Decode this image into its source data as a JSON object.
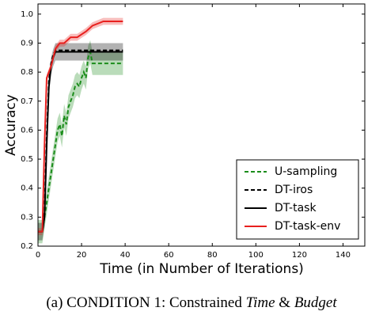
{
  "chart_data": {
    "type": "line",
    "xlabel": "Time (in Number of Iterations)",
    "ylabel": "Accuracy",
    "caption": [
      "(a) CONDITION 1: Constrained ",
      "Time",
      " & ",
      "Budget"
    ],
    "xlim": [
      0,
      150
    ],
    "xticks": [
      0,
      20,
      40,
      60,
      80,
      100,
      120,
      140
    ],
    "ylim": [
      0.2,
      1.035
    ],
    "yticks": [
      {
        "value": 0.2,
        "label": "0.2"
      },
      0.3,
      0.4,
      0.5,
      0.6,
      0.7,
      0.8,
      0.9,
      {
        "value": 1.0,
        "label": "1.0"
      }
    ],
    "legend": "lower right",
    "grid": false,
    "series": [
      {
        "name": "U-sampling",
        "color": "#1a8c1a",
        "dash": true,
        "spread": 0.04,
        "x": [
          0,
          2,
          3,
          4,
          5,
          6,
          7,
          8,
          9,
          10,
          11,
          12,
          13,
          14,
          15,
          16,
          17,
          18,
          19,
          20,
          21,
          22,
          23,
          24,
          25,
          30,
          39
        ],
        "values": [
          0.25,
          0.25,
          0.3,
          0.35,
          0.4,
          0.45,
          0.5,
          0.55,
          0.6,
          0.62,
          0.58,
          0.65,
          0.62,
          0.68,
          0.7,
          0.72,
          0.75,
          0.76,
          0.75,
          0.78,
          0.8,
          0.78,
          0.85,
          0.87,
          0.83,
          0.83,
          0.83
        ]
      },
      {
        "name": "DT-iros",
        "color": "#000000",
        "dash": true,
        "spread": 0.0,
        "x": [
          0,
          2,
          3,
          4,
          5,
          6,
          7,
          8,
          10,
          15,
          20,
          25,
          30,
          39
        ],
        "values": [
          0.25,
          0.25,
          0.32,
          0.58,
          0.77,
          0.83,
          0.86,
          0.875,
          0.875,
          0.875,
          0.875,
          0.875,
          0.875,
          0.875
        ]
      },
      {
        "name": "DT-task",
        "color": "#000000",
        "dash": false,
        "spread": 0.03,
        "x": [
          0,
          2,
          3,
          4,
          5,
          6,
          7,
          8,
          10,
          15,
          20,
          25,
          30,
          39
        ],
        "values": [
          0.25,
          0.25,
          0.3,
          0.55,
          0.75,
          0.82,
          0.85,
          0.87,
          0.87,
          0.87,
          0.87,
          0.87,
          0.87,
          0.87
        ]
      },
      {
        "name": "DT-task-env",
        "color": "#e8201e",
        "dash": false,
        "spread": 0.012,
        "x": [
          0,
          2,
          3,
          4,
          5,
          6,
          7,
          8,
          10,
          12,
          15,
          18,
          20,
          22,
          25,
          30,
          35,
          39
        ],
        "values": [
          0.25,
          0.25,
          0.55,
          0.78,
          0.8,
          0.82,
          0.85,
          0.88,
          0.9,
          0.9,
          0.92,
          0.92,
          0.93,
          0.94,
          0.96,
          0.975,
          0.975,
          0.975
        ]
      }
    ]
  }
}
